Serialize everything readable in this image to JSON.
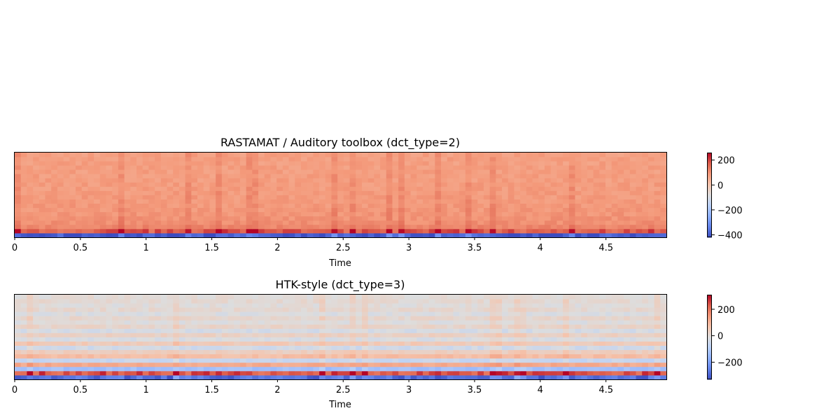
{
  "chart_data": [
    {
      "type": "heatmap",
      "title": "RASTAMAT / Auditory toolbox (dct_type=2)",
      "xlabel": "Time",
      "ylabel": "",
      "xlim": [
        0,
        4.96
      ],
      "xticks": [
        0,
        0.5,
        1,
        1.5,
        2,
        2.5,
        3,
        3.5,
        4,
        4.5
      ],
      "xtick_labels": [
        "0",
        "0.5",
        "1",
        "1.5",
        "2",
        "2.5",
        "3",
        "3.5",
        "4",
        "4.5"
      ],
      "n_frames": 107,
      "n_coefficients": 20,
      "row_means": [
        -400,
        180,
        120,
        105,
        100,
        95,
        92,
        90,
        88,
        86,
        85,
        84,
        83,
        82,
        81,
        80,
        80,
        79,
        79,
        78
      ],
      "colorbar": {
        "min": -420,
        "max": 260,
        "ticks": [
          200,
          0,
          -200,
          -400
        ],
        "tick_labels": [
          "200",
          "0",
          "−200",
          "−400"
        ]
      },
      "colormap": "coolwarm",
      "grid": false
    },
    {
      "type": "heatmap",
      "title": "HTK-style (dct_type=3)",
      "xlabel": "Time",
      "ylabel": "",
      "xlim": [
        0,
        4.96
      ],
      "xticks": [
        0,
        0.5,
        1,
        1.5,
        2,
        2.5,
        3,
        3.5,
        4,
        4.5
      ],
      "xtick_labels": [
        "0",
        "0.5",
        "1",
        "1.5",
        "2",
        "2.5",
        "3",
        "3.5",
        "4",
        "4.5"
      ],
      "n_frames": 107,
      "n_coefficients": 20,
      "row_means": [
        -280,
        240,
        -130,
        120,
        -60,
        80,
        40,
        -40,
        50,
        -20,
        30,
        -30,
        20,
        -10,
        15,
        -15,
        10,
        -5,
        8,
        0
      ],
      "colorbar": {
        "min": -330,
        "max": 310,
        "ticks": [
          200,
          0,
          -200
        ],
        "tick_labels": [
          "200",
          "0",
          "−200"
        ]
      },
      "colormap": "coolwarm",
      "grid": false
    }
  ]
}
